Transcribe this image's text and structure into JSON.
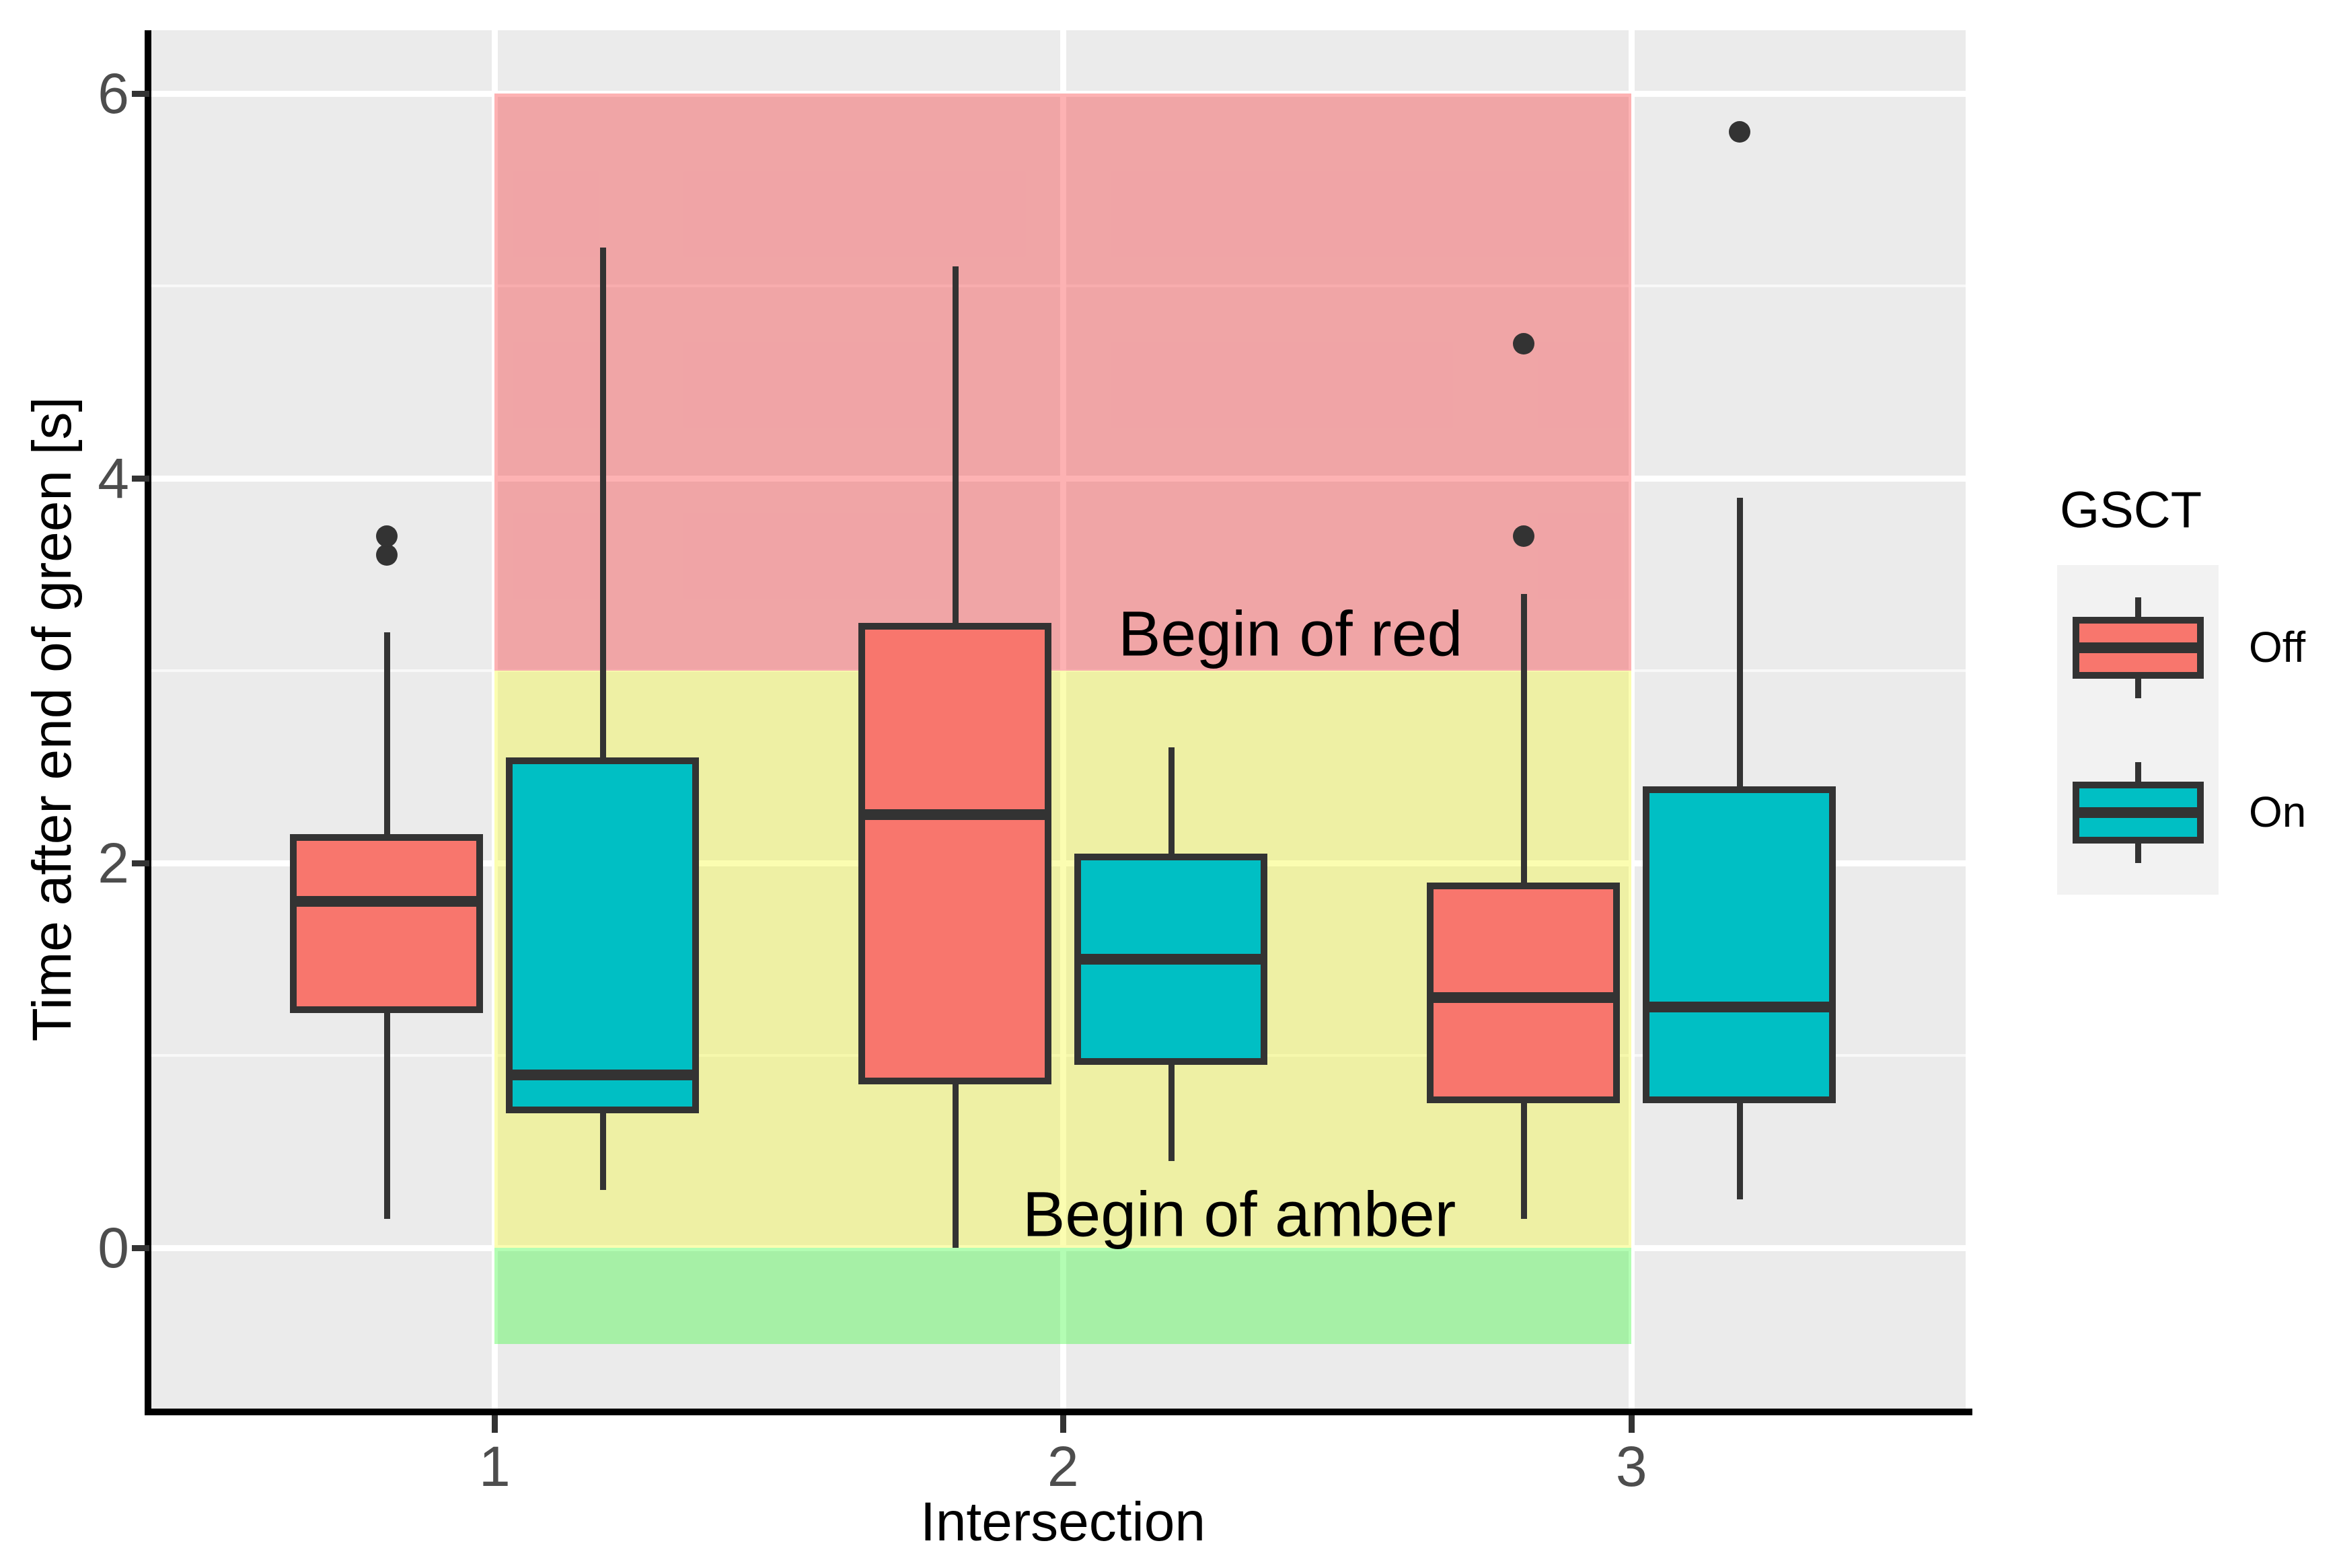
{
  "chart_data": {
    "type": "boxplot",
    "title": "",
    "xlabel": "Intersection",
    "ylabel": "Time after end of green [s]",
    "x_ticks": [
      1,
      2,
      3
    ],
    "y_ticks": [
      0,
      2,
      4,
      6
    ],
    "y_minor_ticks": [
      1,
      3,
      5
    ],
    "xlim": [
      0.396,
      3.588
    ],
    "ylim": [
      -0.836,
      6.329
    ],
    "grid": "on",
    "panel_color": "#EBEBEB",
    "group_offset": 0.19,
    "box_halfwidth": 0.17,
    "background_bands": [
      {
        "name": "red-phase",
        "x0": 1,
        "x1": 3,
        "y0": 3,
        "y1": 6,
        "color": "rgba(249,33,38,0.35)"
      },
      {
        "name": "amber-phase",
        "x0": 1,
        "x1": 3,
        "y0": 0,
        "y1": 3,
        "color": "rgba(244,249,32,0.35)"
      },
      {
        "name": "green-phase",
        "x0": 1,
        "x1": 3,
        "y0": -0.5,
        "y1": 0,
        "color": "rgba(38,249,38,0.35)"
      }
    ],
    "annotations": [
      {
        "text": "Begin of red",
        "x": 2.4,
        "y": 3.19
      },
      {
        "text": "Begin of amber",
        "x": 2.31,
        "y": 0.17
      }
    ],
    "series": [
      {
        "name": "Off",
        "color": "#F8766D",
        "offset": -0.19,
        "boxes": [
          {
            "x": 1,
            "whislo": 0.15,
            "q1": 1.22,
            "med": 1.8,
            "q3": 2.15,
            "whishi": 3.2,
            "fliers": [
              3.6,
              3.7
            ]
          },
          {
            "x": 2,
            "whislo": 0.0,
            "q1": 0.85,
            "med": 2.25,
            "q3": 3.25,
            "whishi": 5.1,
            "fliers": []
          },
          {
            "x": 3,
            "whislo": 0.15,
            "q1": 0.75,
            "med": 1.3,
            "q3": 1.9,
            "whishi": 3.4,
            "fliers": [
              3.7,
              4.7
            ]
          }
        ]
      },
      {
        "name": "On",
        "color": "#00BFC4",
        "offset": 0.19,
        "boxes": [
          {
            "x": 1,
            "whislo": 0.3,
            "q1": 0.7,
            "med": 0.9,
            "q3": 2.55,
            "whishi": 5.2,
            "fliers": []
          },
          {
            "x": 2,
            "whislo": 0.45,
            "q1": 0.95,
            "med": 1.5,
            "q3": 2.05,
            "whishi": 2.6,
            "fliers": []
          },
          {
            "x": 3,
            "whislo": 0.25,
            "q1": 0.75,
            "med": 1.25,
            "q3": 2.4,
            "whishi": 3.9,
            "fliers": [
              5.8
            ]
          }
        ]
      }
    ],
    "legend": {
      "title": "GSCT",
      "position": "right",
      "entries": [
        {
          "label": "Off",
          "color": "#F8766D"
        },
        {
          "label": "On",
          "color": "#00BFC4"
        }
      ]
    }
  }
}
